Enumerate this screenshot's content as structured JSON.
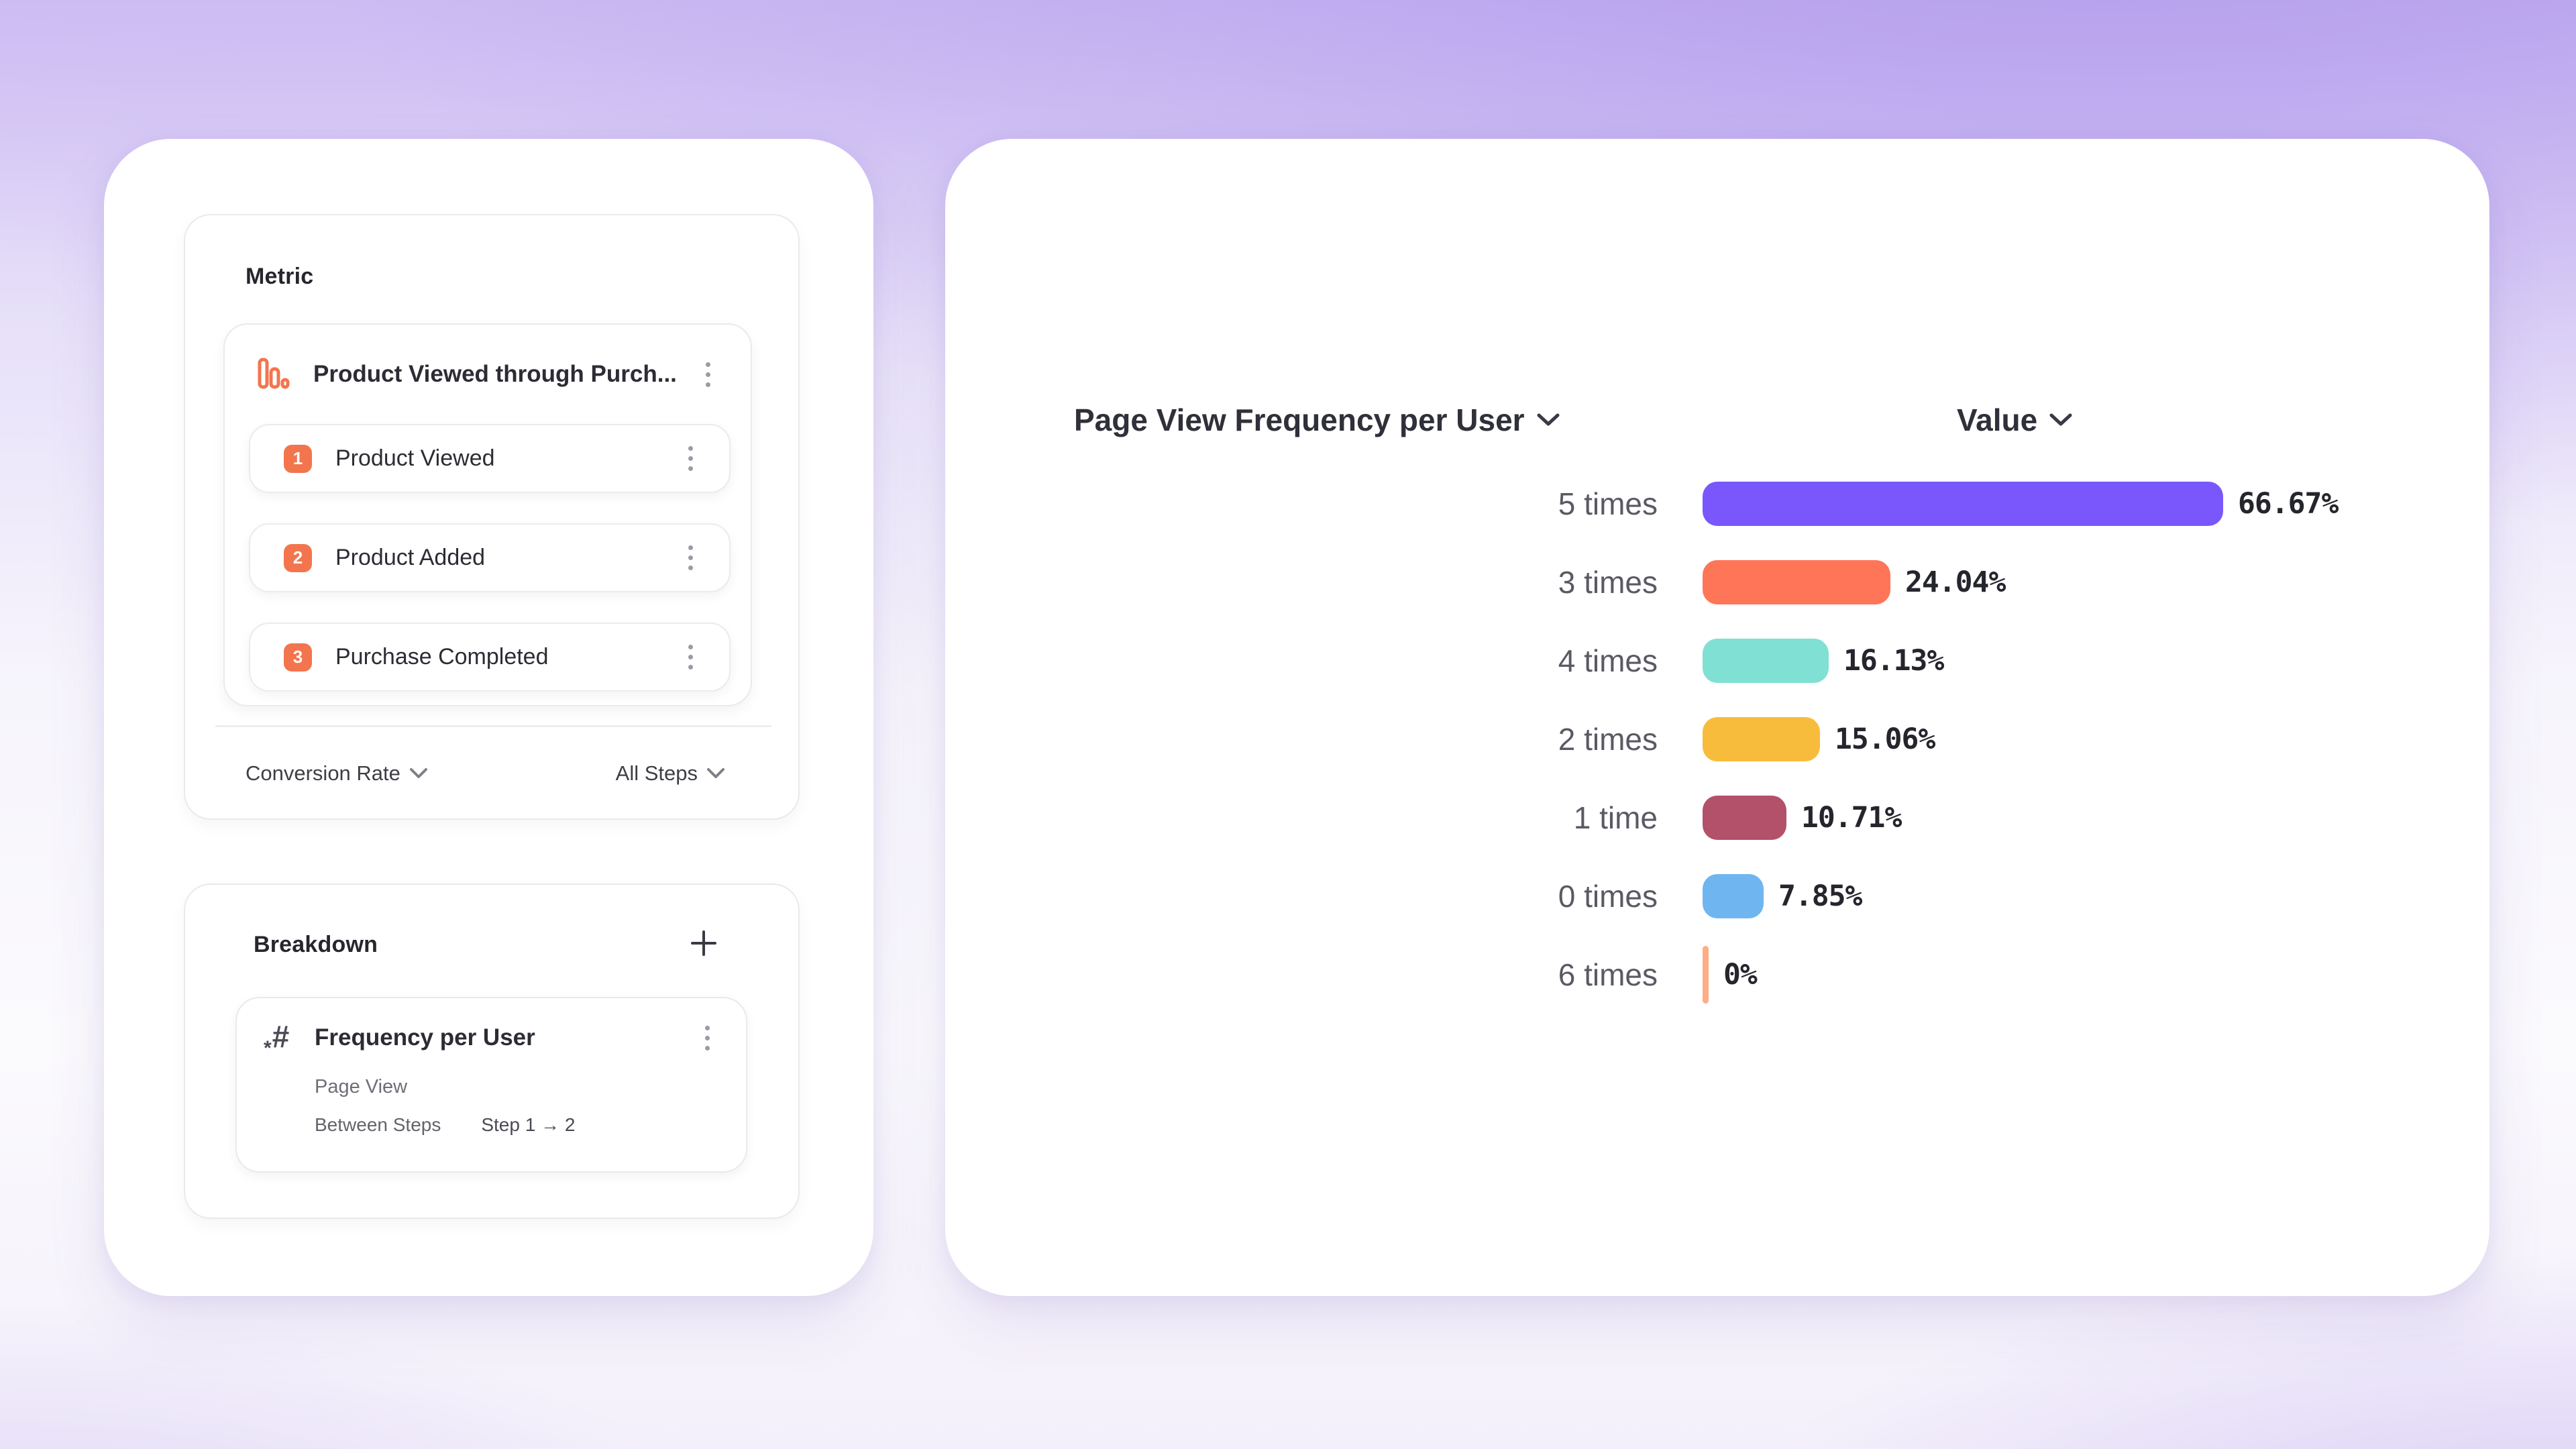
{
  "left_panel": {
    "metric_card": {
      "title": "Metric",
      "selector": {
        "icon": "funnel-bars-icon",
        "label": "Product Viewed through Purch...",
        "steps": [
          {
            "number": "1",
            "label": "Product Viewed"
          },
          {
            "number": "2",
            "label": "Product Added"
          },
          {
            "number": "3",
            "label": "Purchase Completed"
          }
        ]
      },
      "footer": {
        "measurement": "Conversion Rate",
        "steps_filter": "All Steps"
      }
    },
    "breakdown_card": {
      "title": "Breakdown",
      "item": {
        "icon": "numeric-property-icon",
        "title": "Frequency per User",
        "event": "Page View",
        "between_label": "Between Steps",
        "steps_range": "Step 1 → 2"
      }
    }
  },
  "chart_panel": {
    "x_header": "Page View Frequency per User",
    "value_header": "Value"
  },
  "chart_data": {
    "type": "bar",
    "orientation": "horizontal",
    "title": "Page View Frequency per User",
    "value_column": "Value",
    "categories": [
      "5 times",
      "3 times",
      "4 times",
      "2 times",
      "1 time",
      "0 times",
      "6 times"
    ],
    "values": [
      66.67,
      24.04,
      16.13,
      15.06,
      10.71,
      7.85,
      0
    ],
    "value_labels": [
      "66.67%",
      "24.04%",
      "16.13%",
      "15.06%",
      "10.71%",
      "7.85%",
      "0%"
    ],
    "colors": [
      "#7957fc",
      "#ff7557",
      "#80e0d4",
      "#f8bc3c",
      "#b25169",
      "#6fb6f1",
      "#ffad85"
    ],
    "xlim": [
      0,
      66.67
    ],
    "grid": false,
    "legend": "none"
  },
  "colors": {
    "accent_orange": "#f3754e",
    "badge_text": "#ffffff",
    "card_border": "#e9e9ee",
    "kebab_dot": "#9b9ba4",
    "heading_text": "#26262e",
    "label_text": "#5a5a64"
  }
}
